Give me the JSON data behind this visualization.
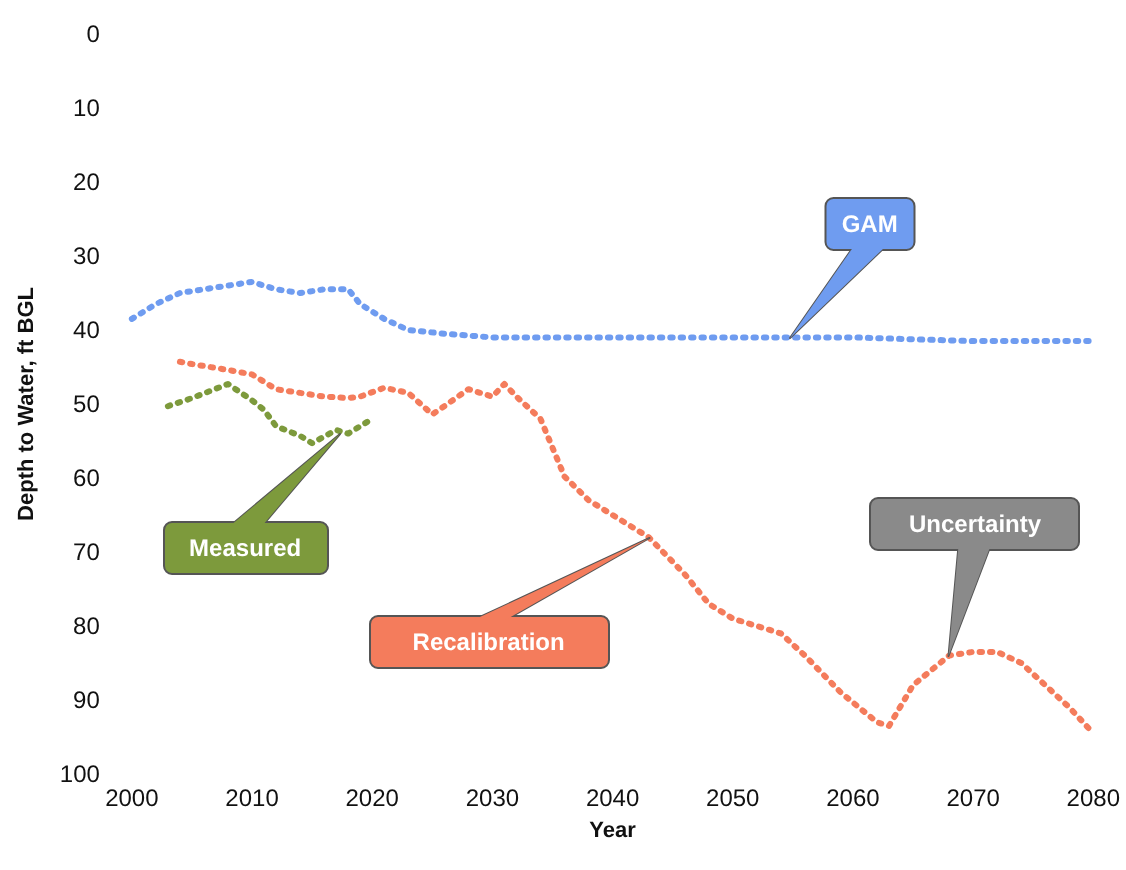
{
  "chart_data": {
    "type": "line",
    "xlabel": "Year",
    "ylabel": "Depth to Water, ft BGL",
    "xlim": [
      2000,
      2080
    ],
    "xticks": [
      2000,
      2010,
      2020,
      2030,
      2040,
      2050,
      2060,
      2070,
      2080
    ],
    "ylim": [
      100,
      0
    ],
    "yticks": [
      0,
      10,
      20,
      30,
      40,
      50,
      60,
      70,
      80,
      90,
      100
    ],
    "grid": false,
    "marker": "none",
    "line_style": "dotted",
    "series": [
      {
        "color": "#6f9cf0",
        "x": [
          2000,
          2002,
          2004,
          2006,
          2008,
          2010,
          2012,
          2014,
          2016,
          2018,
          2019,
          2021,
          2023,
          2026,
          2030,
          2040,
          2050,
          2060,
          2070,
          2080
        ],
        "values": [
          38.5,
          36.5,
          35,
          34.5,
          34,
          33.5,
          34.5,
          35,
          34.5,
          34.5,
          36.5,
          38.5,
          40,
          40.5,
          41,
          41,
          41,
          41,
          41.5,
          41.5
        ]
      },
      {
        "color": "#f47c5c",
        "x": [
          2004,
          2005,
          2008,
          2010,
          2012,
          2014,
          2016,
          2018,
          2019,
          2021,
          2023,
          2025,
          2026,
          2028,
          2030,
          2031,
          2032,
          2034,
          2036,
          2038,
          2040,
          2043,
          2046,
          2048,
          2050,
          2052,
          2054,
          2056,
          2059,
          2062,
          2063,
          2065,
          2068,
          2070,
          2072,
          2074,
          2076,
          2078,
          2080
        ],
        "values": [
          44.3,
          44.6,
          45.4,
          46,
          48,
          48.5,
          49,
          49.2,
          49,
          47.8,
          48.5,
          51.4,
          50.3,
          48,
          49,
          47.3,
          49,
          52,
          59.8,
          63,
          65,
          68,
          73,
          77,
          79,
          80,
          81,
          84,
          89,
          93,
          93.5,
          88,
          84,
          83.5,
          83.5,
          85,
          88,
          91,
          94.5
        ]
      },
      {
        "color": "#7d9a3c",
        "x": [
          2003,
          2005,
          2008,
          2010,
          2011,
          2012,
          2014,
          2015,
          2017,
          2018,
          2020
        ],
        "values": [
          50.3,
          49.2,
          47.3,
          49.5,
          50.8,
          53,
          54.3,
          55.3,
          53.5,
          54,
          52
        ]
      }
    ],
    "annotations": [
      "GAM",
      {
        "text": "Recalibration",
        "x": 2043,
        "y": 68
      },
      "Measured",
      {
        "text": "Uncertainty",
        "x": 2068,
        "y": 84
      }
    ]
  }
}
